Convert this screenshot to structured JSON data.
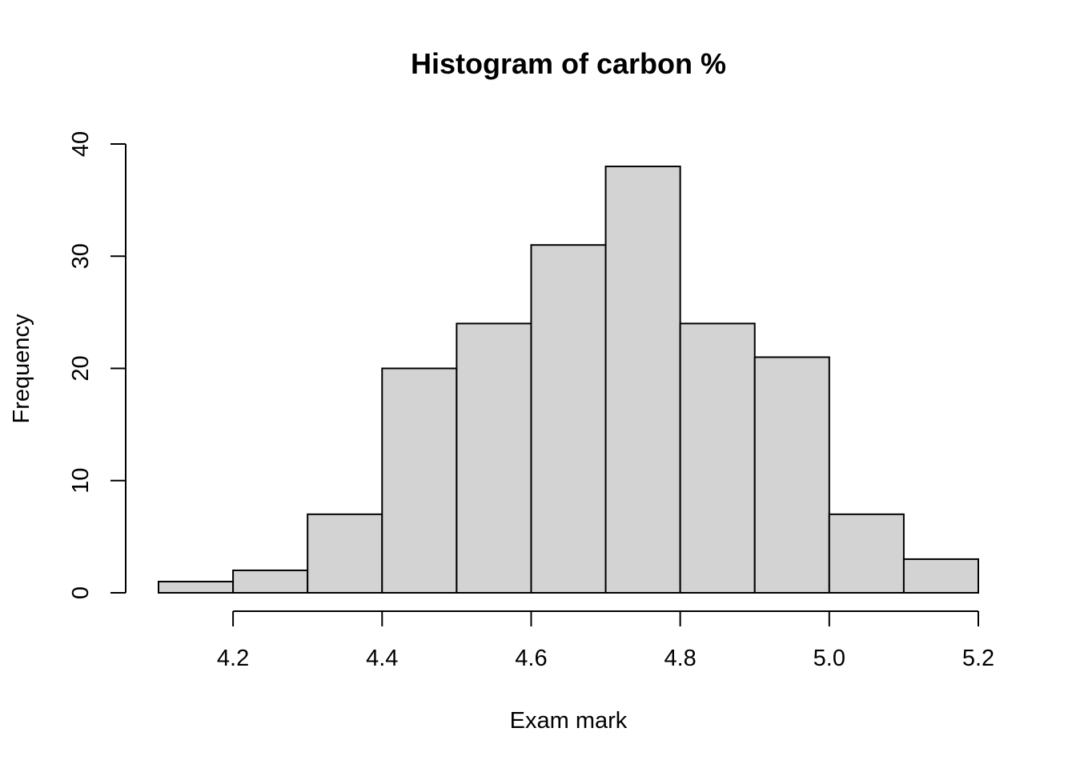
{
  "chart_data": {
    "type": "bar",
    "title": "Histogram of carbon %",
    "xlabel": "Exam mark",
    "ylabel": "Frequency",
    "bins": [
      {
        "start": 4.1,
        "end": 4.2,
        "count": 1
      },
      {
        "start": 4.2,
        "end": 4.3,
        "count": 2
      },
      {
        "start": 4.3,
        "end": 4.4,
        "count": 7
      },
      {
        "start": 4.4,
        "end": 4.5,
        "count": 20
      },
      {
        "start": 4.5,
        "end": 4.6,
        "count": 24
      },
      {
        "start": 4.6,
        "end": 4.7,
        "count": 31
      },
      {
        "start": 4.7,
        "end": 4.8,
        "count": 38
      },
      {
        "start": 4.8,
        "end": 4.9,
        "count": 24
      },
      {
        "start": 4.9,
        "end": 5.0,
        "count": 21
      },
      {
        "start": 5.0,
        "end": 5.1,
        "count": 7
      },
      {
        "start": 5.1,
        "end": 5.2,
        "count": 3
      }
    ],
    "xlim": [
      4.1,
      5.2
    ],
    "ylim": [
      0,
      40
    ],
    "x_ticks": [
      4.2,
      4.4,
      4.6,
      4.8,
      5.0,
      5.2
    ],
    "x_tick_labels": [
      "4.2",
      "4.4",
      "4.6",
      "4.8",
      "5.0",
      "5.2"
    ],
    "y_ticks": [
      0,
      10,
      20,
      30,
      40
    ],
    "y_tick_labels": [
      "0",
      "10",
      "20",
      "30",
      "40"
    ],
    "grid": false,
    "colors": {
      "bar_fill": "#d3d3d3",
      "bar_stroke": "#000000"
    }
  }
}
